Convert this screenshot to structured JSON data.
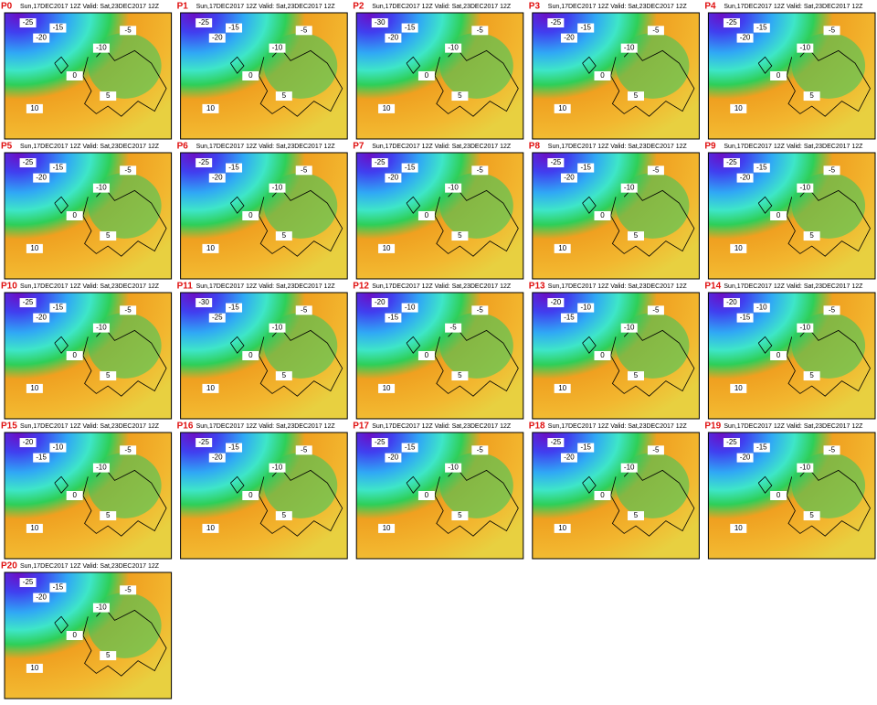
{
  "header_text": "Sun,17DEC2017 12Z Valid: Sat,23DEC2017 12Z",
  "panels": [
    {
      "label": "P0",
      "contours": [
        -25,
        -20,
        -15,
        -10,
        -5,
        0,
        5,
        10
      ]
    },
    {
      "label": "P1",
      "contours": [
        -25,
        -20,
        -15,
        -10,
        -5,
        0,
        5,
        10
      ]
    },
    {
      "label": "P2",
      "contours": [
        -30,
        -20,
        -15,
        -10,
        -5,
        0,
        5,
        10
      ]
    },
    {
      "label": "P3",
      "contours": [
        -25,
        -20,
        -15,
        -10,
        -5,
        0,
        5,
        10
      ]
    },
    {
      "label": "P4",
      "contours": [
        -25,
        -20,
        -15,
        -10,
        -5,
        0,
        5,
        10
      ]
    },
    {
      "label": "P5",
      "contours": [
        -25,
        -20,
        -15,
        -10,
        -5,
        0,
        5,
        10
      ]
    },
    {
      "label": "P6",
      "contours": [
        -25,
        -20,
        -15,
        -10,
        -5,
        0,
        5,
        10
      ]
    },
    {
      "label": "P7",
      "contours": [
        -25,
        -20,
        -15,
        -10,
        -5,
        0,
        5,
        10
      ]
    },
    {
      "label": "P8",
      "contours": [
        -25,
        -20,
        -15,
        -10,
        -5,
        0,
        5,
        10
      ]
    },
    {
      "label": "P9",
      "contours": [
        -25,
        -20,
        -15,
        -10,
        -5,
        0,
        5,
        10
      ]
    },
    {
      "label": "P10",
      "contours": [
        -25,
        -20,
        -15,
        -10,
        -5,
        0,
        5,
        10
      ]
    },
    {
      "label": "P11",
      "contours": [
        -30,
        -25,
        -15,
        -10,
        -5,
        0,
        5,
        10
      ]
    },
    {
      "label": "P12",
      "contours": [
        -20,
        -15,
        -10,
        -5,
        -5,
        0,
        5,
        10
      ]
    },
    {
      "label": "P13",
      "contours": [
        -20,
        -15,
        -10,
        -10,
        -5,
        0,
        5,
        10
      ]
    },
    {
      "label": "P14",
      "contours": [
        -20,
        -15,
        -10,
        -10,
        -5,
        0,
        5,
        10
      ]
    },
    {
      "label": "P15",
      "contours": [
        -20,
        -15,
        -10,
        -10,
        -5,
        0,
        5,
        10
      ]
    },
    {
      "label": "P16",
      "contours": [
        -25,
        -20,
        -15,
        -10,
        -5,
        0,
        5,
        10
      ]
    },
    {
      "label": "P17",
      "contours": [
        -25,
        -20,
        -15,
        -10,
        -5,
        0,
        5,
        10
      ]
    },
    {
      "label": "P18",
      "contours": [
        -25,
        -20,
        -15,
        -10,
        -5,
        0,
        5,
        10
      ]
    },
    {
      "label": "P19",
      "contours": [
        -25,
        -20,
        -15,
        -10,
        -5,
        0,
        5,
        10
      ]
    },
    {
      "label": "P20",
      "contours": [
        -25,
        -20,
        -15,
        -10,
        -5,
        0,
        5,
        10
      ]
    }
  ]
}
